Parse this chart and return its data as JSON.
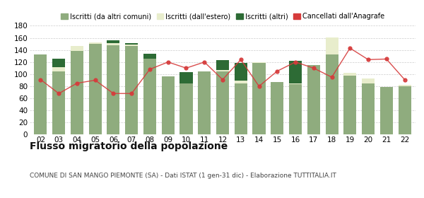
{
  "years": [
    "02",
    "03",
    "04",
    "05",
    "06",
    "07",
    "08",
    "09",
    "10",
    "11",
    "12",
    "13",
    "14",
    "15",
    "16",
    "17",
    "18",
    "19",
    "20",
    "21",
    "22"
  ],
  "iscritti_altri_comuni": [
    132,
    105,
    138,
    150,
    148,
    147,
    126,
    96,
    85,
    105,
    105,
    85,
    118,
    87,
    83,
    115,
    133,
    97,
    85,
    79,
    80
  ],
  "iscritti_estero": [
    0,
    6,
    8,
    2,
    3,
    2,
    0,
    0,
    0,
    0,
    2,
    4,
    2,
    0,
    2,
    0,
    28,
    5,
    8,
    0,
    2
  ],
  "iscritti_altri": [
    0,
    14,
    0,
    0,
    5,
    2,
    8,
    0,
    18,
    0,
    16,
    30,
    0,
    0,
    37,
    0,
    0,
    0,
    0,
    0,
    0
  ],
  "cancellati": [
    91,
    68,
    85,
    90,
    68,
    68,
    108,
    120,
    110,
    120,
    91,
    124,
    80,
    105,
    120,
    110,
    95,
    143,
    124,
    125,
    91
  ],
  "color_altri_comuni": "#8fac7e",
  "color_estero": "#e8edcc",
  "color_altri": "#2d6b35",
  "color_cancellati": "#d63b3b",
  "color_bg": "#ffffff",
  "color_grid": "#cccccc",
  "ylim": [
    0,
    180
  ],
  "yticks": [
    0,
    20,
    40,
    60,
    80,
    100,
    120,
    140,
    160,
    180
  ],
  "title": "Flusso migratorio della popolazione",
  "subtitle": "COMUNE DI SAN MANGO PIEMONTE (SA) - Dati ISTAT (1 gen-31 dic) - Elaborazione TUTTITALIA.IT",
  "legend_labels": [
    "Iscritti (da altri comuni)",
    "Iscritti (dall'estero)",
    "Iscritti (altri)",
    "Cancellati dall'Anagrafe"
  ],
  "title_fontsize": 10,
  "subtitle_fontsize": 6.5,
  "legend_fontsize": 7,
  "tick_fontsize": 7.5
}
